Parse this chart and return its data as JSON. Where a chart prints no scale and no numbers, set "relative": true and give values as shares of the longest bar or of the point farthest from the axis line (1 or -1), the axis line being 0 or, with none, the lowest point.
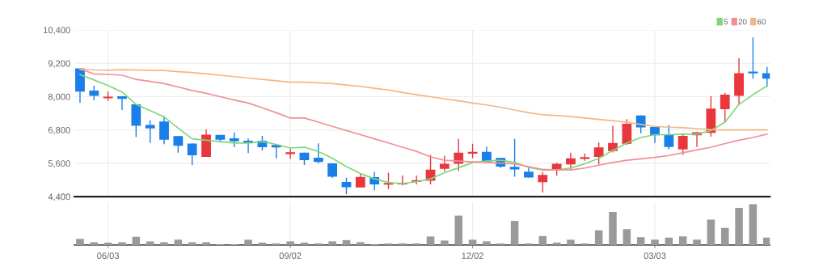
{
  "chart_data": [
    {
      "type": "candlestick",
      "categories": [
        null,
        null,
        null,
        null,
        null,
        null,
        null,
        null,
        null,
        null,
        null,
        null,
        null,
        null,
        null,
        null,
        null,
        null,
        null,
        null,
        null,
        null,
        null,
        null,
        null,
        null,
        null,
        null,
        null,
        null,
        null,
        null,
        null,
        null,
        null,
        null,
        null,
        null,
        null,
        null,
        null,
        null,
        null,
        null,
        null,
        null,
        null,
        null,
        null,
        null
      ],
      "ohlc": [
        [
          9000,
          9000,
          7800,
          8200
        ],
        [
          8200,
          8370,
          7890,
          8050
        ],
        [
          7960,
          8170,
          7870,
          7980
        ],
        [
          7990,
          7990,
          7540,
          7940
        ],
        [
          7700,
          7700,
          6560,
          6970
        ],
        [
          6960,
          7130,
          6350,
          6880
        ],
        [
          7080,
          7280,
          6310,
          6470
        ],
        [
          6560,
          6560,
          6000,
          6250
        ],
        [
          6290,
          6290,
          5560,
          5910
        ],
        [
          5850,
          6800,
          5850,
          6610
        ],
        [
          6600,
          6600,
          6380,
          6470
        ],
        [
          6480,
          6690,
          6200,
          6410
        ],
        [
          6390,
          6470,
          5990,
          6350
        ],
        [
          6390,
          6570,
          6080,
          6200
        ],
        [
          6240,
          6240,
          5800,
          6190
        ],
        [
          5950,
          6100,
          5780,
          5980
        ],
        [
          5960,
          5960,
          5560,
          5730
        ],
        [
          5780,
          6300,
          5620,
          5670
        ],
        [
          5580,
          5580,
          5090,
          5140
        ],
        [
          4910,
          5060,
          4510,
          4760
        ],
        [
          4750,
          5190,
          4750,
          5090
        ],
        [
          5080,
          5270,
          4640,
          4860
        ],
        [
          4850,
          5240,
          4690,
          4870
        ],
        [
          4860,
          5140,
          4820,
          4880
        ],
        [
          4950,
          5140,
          4860,
          4970
        ],
        [
          4990,
          5880,
          4860,
          5350
        ],
        [
          5420,
          5850,
          5330,
          5560
        ],
        [
          5600,
          6460,
          5350,
          5960
        ],
        [
          5970,
          6280,
          5810,
          5990
        ],
        [
          5990,
          6180,
          5660,
          5660
        ],
        [
          5770,
          5770,
          5450,
          5500
        ],
        [
          5450,
          6460,
          5140,
          5400
        ],
        [
          5280,
          5460,
          5110,
          5110
        ],
        [
          4940,
          5270,
          4570,
          5160
        ],
        [
          5360,
          5600,
          5170,
          5560
        ],
        [
          5580,
          5960,
          5380,
          5760
        ],
        [
          5780,
          5930,
          5710,
          5800
        ],
        [
          5850,
          6330,
          5580,
          6150
        ],
        [
          6060,
          6930,
          6010,
          6310
        ],
        [
          6320,
          7170,
          6280,
          7000
        ],
        [
          7300,
          7300,
          6700,
          6910
        ],
        [
          6890,
          6890,
          6350,
          6630
        ],
        [
          6610,
          6960,
          6120,
          6210
        ],
        [
          6120,
          6660,
          5920,
          6570
        ],
        [
          6630,
          6700,
          6210,
          6700
        ],
        [
          6720,
          8000,
          6580,
          7550
        ],
        [
          7570,
          8110,
          7130,
          8050
        ],
        [
          8050,
          9360,
          7720,
          8820
        ],
        [
          8880,
          10110,
          8670,
          8860
        ],
        [
          8820,
          9050,
          8370,
          8670
        ]
      ],
      "colors": [
        "#1a7fe8",
        "#1a7fe8",
        "#e8383d",
        "#1a7fe8",
        "#1a7fe8",
        "#1a7fe8",
        "#1a7fe8",
        "#1a7fe8",
        "#1a7fe8",
        "#e8383d",
        "#1a7fe8",
        "#1a7fe8",
        "#1a7fe8",
        "#1a7fe8",
        "#1a7fe8",
        "#e8383d",
        "#1a7fe8",
        "#1a7fe8",
        "#1a7fe8",
        "#1a7fe8",
        "#e8383d",
        "#1a7fe8",
        "#e8383d",
        "#e8383d",
        "#e8383d",
        "#e8383d",
        "#e8383d",
        "#e8383d",
        "#e8383d",
        "#1a7fe8",
        "#1a7fe8",
        "#1a7fe8",
        "#1a7fe8",
        "#e8383d",
        "#e8383d",
        "#e8383d",
        "#e8383d",
        "#e8383d",
        "#e8383d",
        "#e8383d",
        "#1a7fe8",
        "#1a7fe8",
        "#1a7fe8",
        "#e8383d",
        "#e8383d",
        "#e8383d",
        "#e8383d",
        "#e8383d",
        "#1a7fe8",
        "#1a7fe8"
      ],
      "series": [
        {
          "name": "5",
          "type": "line",
          "color": "#7fd67a",
          "values": [
            8790,
            8600,
            8400,
            8170,
            7720,
            7500,
            7270,
            6870,
            6480,
            6430,
            6380,
            6330,
            6330,
            6380,
            6280,
            6150,
            6180,
            6030,
            5780,
            5480,
            5230,
            5040,
            4910,
            4870,
            4940,
            5040,
            5260,
            5440,
            5630,
            5680,
            5710,
            5630,
            5450,
            5360,
            5360,
            5430,
            5580,
            5780,
            6060,
            6330,
            6530,
            6630,
            6630,
            6650,
            6650,
            6780,
            7080,
            7720,
            8070,
            8390
          ]
        },
        {
          "name": "20",
          "type": "line",
          "color": "#f28e99",
          "values": [
            8990,
            8820,
            8800,
            8770,
            8620,
            8550,
            8470,
            8350,
            8220,
            8120,
            8000,
            7880,
            7770,
            7600,
            7420,
            7230,
            7230,
            7080,
            6930,
            6780,
            6630,
            6480,
            6330,
            6180,
            6030,
            5830,
            5710,
            5680,
            5650,
            5630,
            5600,
            5580,
            5480,
            5380,
            5360,
            5360,
            5430,
            5530,
            5630,
            5710,
            5760,
            5810,
            5880,
            5980,
            6080,
            6180,
            6310,
            6430,
            6530,
            6650
          ]
        },
        {
          "name": "60",
          "type": "line",
          "color": "#f5b583",
          "values": [
            8990,
            8960,
            8950,
            8970,
            8960,
            8950,
            8940,
            8900,
            8870,
            8820,
            8770,
            8720,
            8670,
            8620,
            8570,
            8520,
            8520,
            8500,
            8470,
            8420,
            8370,
            8300,
            8240,
            8150,
            8070,
            8000,
            7920,
            7850,
            7770,
            7700,
            7620,
            7520,
            7420,
            7350,
            7320,
            7280,
            7230,
            7180,
            7130,
            7080,
            7000,
            6930,
            6900,
            6880,
            6850,
            6810,
            6800,
            6800,
            6800,
            6800
          ]
        }
      ],
      "ylim": [
        4400,
        10400
      ],
      "yticks": [
        {
          "value": 4400,
          "label": "4,400"
        },
        {
          "value": 5600,
          "label": "5,600"
        },
        {
          "value": 6800,
          "label": "6,800"
        },
        {
          "value": 8000,
          "label": "8,000"
        },
        {
          "value": 9200,
          "label": "9,200"
        },
        {
          "value": 10400,
          "label": "10,400"
        }
      ],
      "grid": true,
      "legend": "top right",
      "tick_labels": "y"
    },
    {
      "type": "bar",
      "relative": true,
      "color": "#9a9a9a",
      "categories": [
        null,
        null,
        "06/03",
        null,
        null,
        null,
        null,
        null,
        null,
        null,
        null,
        null,
        null,
        null,
        null,
        "09/02",
        null,
        null,
        null,
        null,
        null,
        null,
        null,
        null,
        null,
        null,
        null,
        null,
        "12/02",
        null,
        null,
        null,
        null,
        null,
        null,
        null,
        null,
        null,
        null,
        null,
        null,
        "03/03",
        null,
        null,
        null,
        null,
        null,
        null,
        null,
        null
      ],
      "values": [
        0.15,
        0.07,
        0.06,
        0.07,
        0.2,
        0.09,
        0.07,
        0.13,
        0.07,
        0.07,
        0.02,
        0.02,
        0.13,
        0.06,
        0.04,
        0.09,
        0.06,
        0.04,
        0.09,
        0.12,
        0.07,
        0.02,
        0.04,
        0.04,
        0.04,
        0.21,
        0.11,
        0.72,
        0.13,
        0.09,
        0.04,
        0.59,
        0.04,
        0.22,
        0.06,
        0.13,
        0.04,
        0.36,
        0.81,
        0.39,
        0.19,
        0.13,
        0.18,
        0.21,
        0.13,
        0.62,
        0.42,
        0.91,
        1,
        0.18
      ],
      "grid": "x",
      "tick_labels": "x"
    }
  ]
}
